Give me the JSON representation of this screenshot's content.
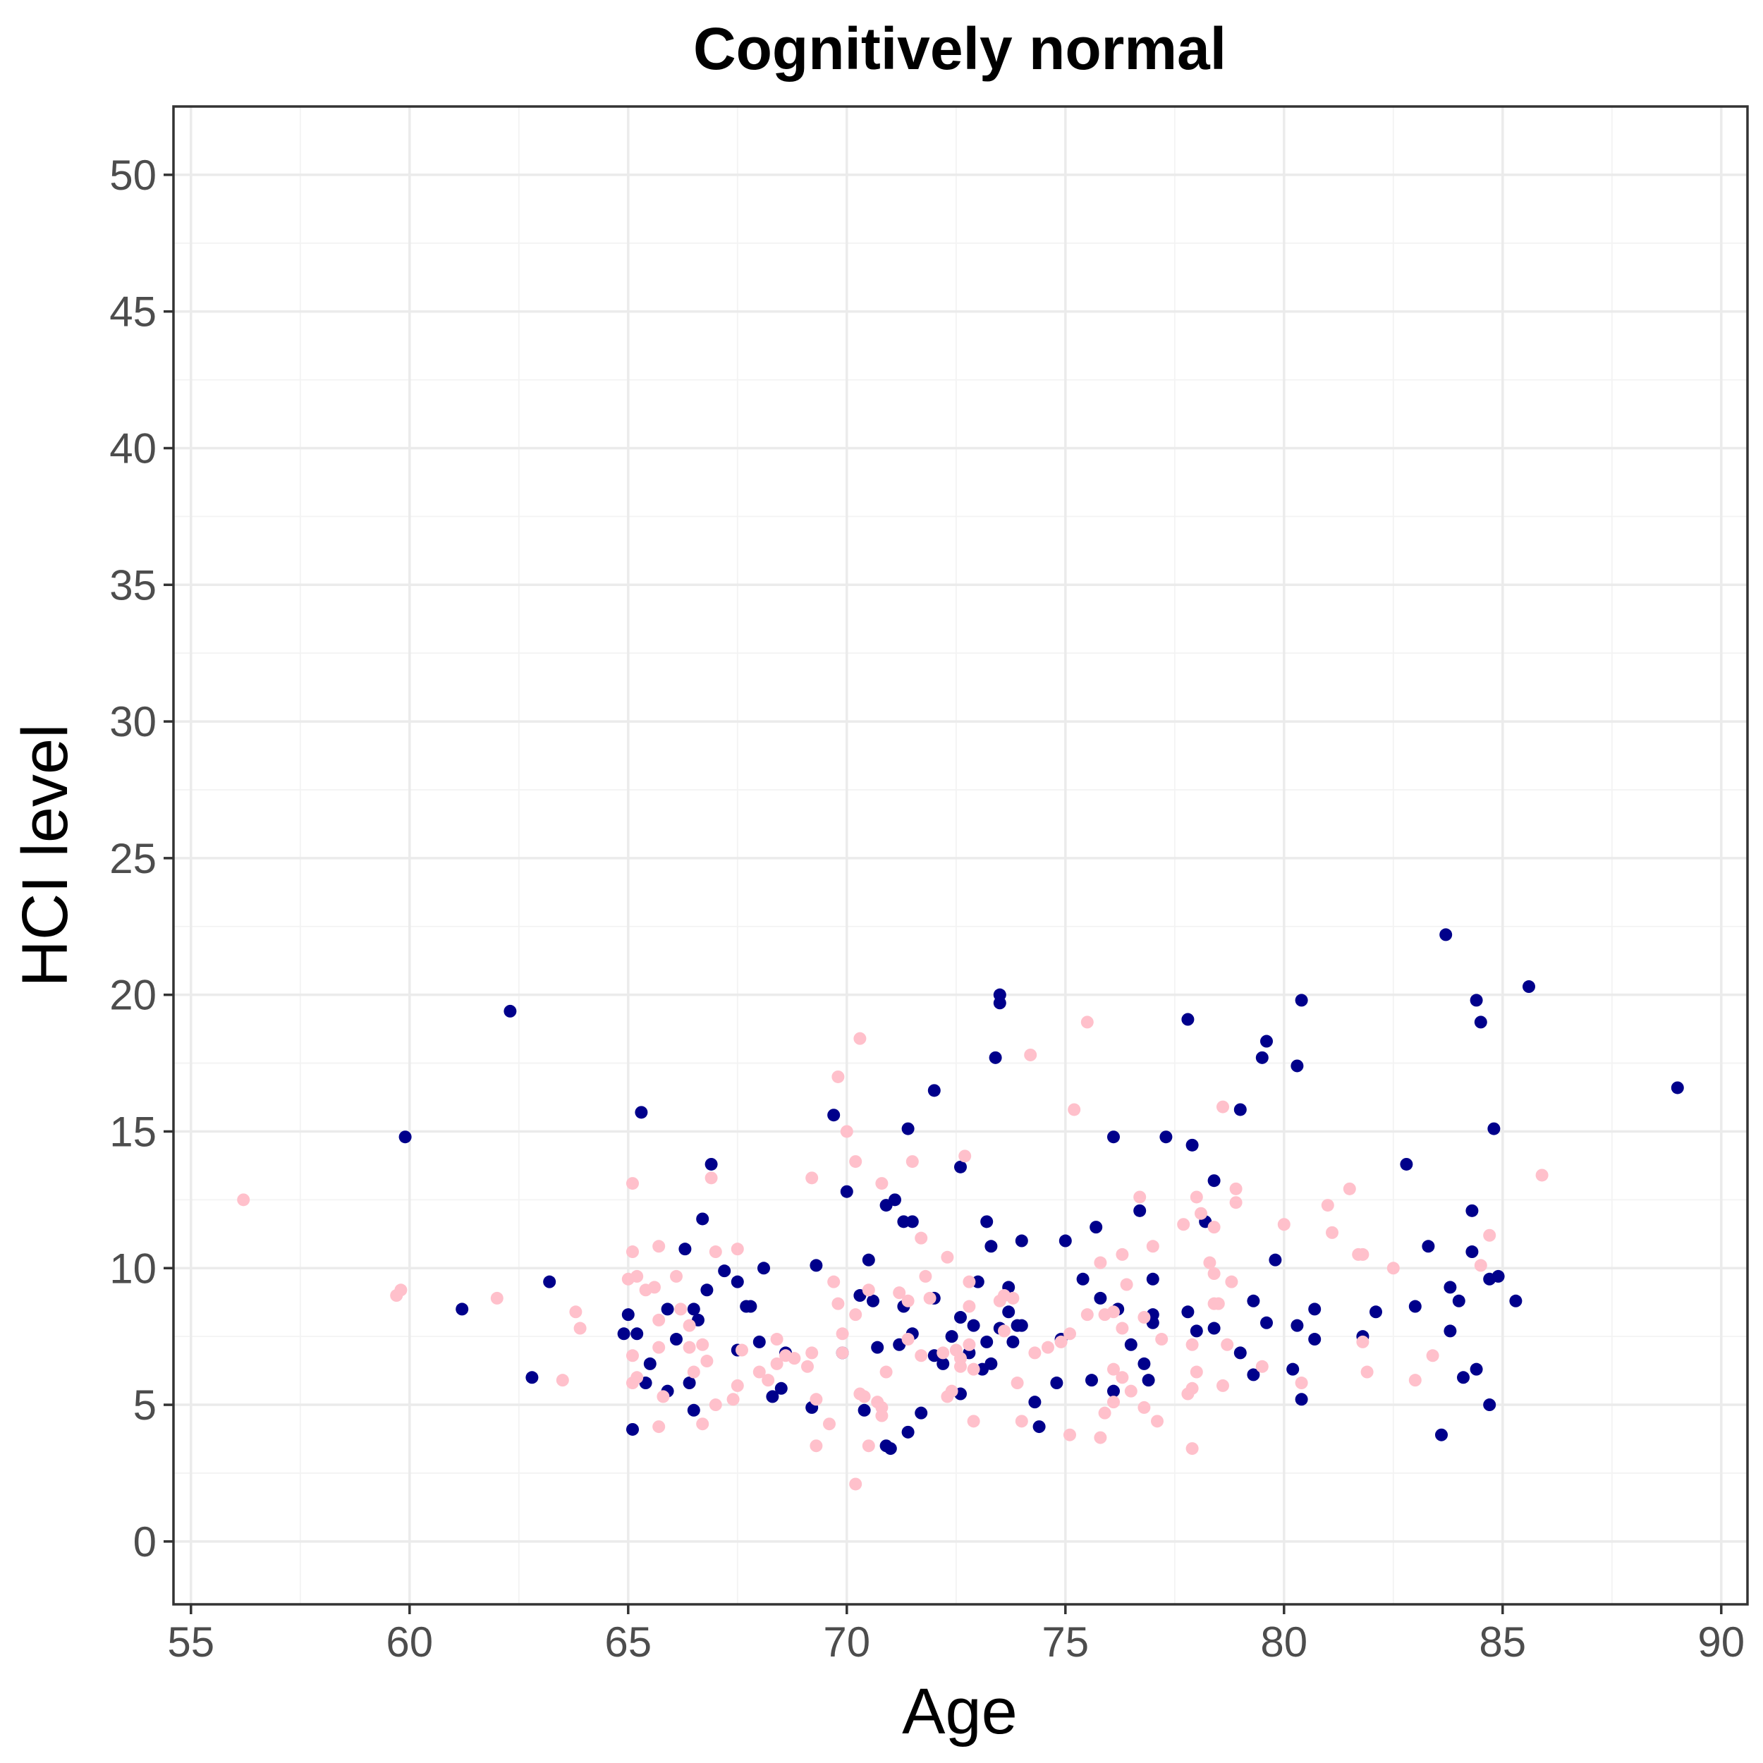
{
  "chart_data": {
    "type": "scatter",
    "title": "Cognitively normal",
    "xlabel": "Age",
    "ylabel": "HCI level",
    "xlim": [
      54.6,
      90.6
    ],
    "ylim": [
      -2.3,
      52.5
    ],
    "x_ticks": [
      55,
      60,
      65,
      70,
      75,
      80,
      85,
      90
    ],
    "y_ticks": [
      0,
      5,
      10,
      15,
      20,
      25,
      30,
      35,
      40,
      45,
      50
    ],
    "grid": true,
    "legend": "none",
    "series": [
      {
        "color": "#00008b",
        "points": [
          [
            59.9,
            14.8
          ],
          [
            61.2,
            8.5
          ],
          [
            62.3,
            19.4
          ],
          [
            62.8,
            6.0
          ],
          [
            63.2,
            9.5
          ],
          [
            64.9,
            7.6
          ],
          [
            65.0,
            8.3
          ],
          [
            65.1,
            4.1
          ],
          [
            65.2,
            7.6
          ],
          [
            65.3,
            15.7
          ],
          [
            65.4,
            5.8
          ],
          [
            65.5,
            6.5
          ],
          [
            65.9,
            8.5
          ],
          [
            65.9,
            5.5
          ],
          [
            66.1,
            7.4
          ],
          [
            66.3,
            10.7
          ],
          [
            66.4,
            5.8
          ],
          [
            66.5,
            8.5
          ],
          [
            66.5,
            4.8
          ],
          [
            66.6,
            8.1
          ],
          [
            66.7,
            11.8
          ],
          [
            66.8,
            9.2
          ],
          [
            66.9,
            13.8
          ],
          [
            67.2,
            9.9
          ],
          [
            67.5,
            9.5
          ],
          [
            67.5,
            7.0
          ],
          [
            67.7,
            8.6
          ],
          [
            67.8,
            8.6
          ],
          [
            68.0,
            7.3
          ],
          [
            68.1,
            10.0
          ],
          [
            68.3,
            5.3
          ],
          [
            68.5,
            5.6
          ],
          [
            68.6,
            6.9
          ],
          [
            69.2,
            4.9
          ],
          [
            69.3,
            10.1
          ],
          [
            69.7,
            15.6
          ],
          [
            69.9,
            6.9
          ],
          [
            70.0,
            12.8
          ],
          [
            70.3,
            9.0
          ],
          [
            70.4,
            4.8
          ],
          [
            70.5,
            10.3
          ],
          [
            70.6,
            8.8
          ],
          [
            70.7,
            7.1
          ],
          [
            70.9,
            12.3
          ],
          [
            70.9,
            3.5
          ],
          [
            71.0,
            3.4
          ],
          [
            71.1,
            12.5
          ],
          [
            71.2,
            7.2
          ],
          [
            71.3,
            11.7
          ],
          [
            71.3,
            8.6
          ],
          [
            71.4,
            4.0
          ],
          [
            71.4,
            15.1
          ],
          [
            71.5,
            7.6
          ],
          [
            71.5,
            11.7
          ],
          [
            71.7,
            4.7
          ],
          [
            72.0,
            16.5
          ],
          [
            72.0,
            8.9
          ],
          [
            72.0,
            6.8
          ],
          [
            72.2,
            6.5
          ],
          [
            72.4,
            7.5
          ],
          [
            72.6,
            13.7
          ],
          [
            72.6,
            8.2
          ],
          [
            72.6,
            5.4
          ],
          [
            72.8,
            6.9
          ],
          [
            72.9,
            7.9
          ],
          [
            73.0,
            9.5
          ],
          [
            73.1,
            6.3
          ],
          [
            73.2,
            11.7
          ],
          [
            73.2,
            7.3
          ],
          [
            73.3,
            6.5
          ],
          [
            73.3,
            10.8
          ],
          [
            73.4,
            17.7
          ],
          [
            73.5,
            20.0
          ],
          [
            73.5,
            19.7
          ],
          [
            73.5,
            7.8
          ],
          [
            73.7,
            9.3
          ],
          [
            73.7,
            8.4
          ],
          [
            73.8,
            7.3
          ],
          [
            73.9,
            7.9
          ],
          [
            74.0,
            7.9
          ],
          [
            74.0,
            11.0
          ],
          [
            74.3,
            5.1
          ],
          [
            74.4,
            4.2
          ],
          [
            74.8,
            5.8
          ],
          [
            74.9,
            7.4
          ],
          [
            75.0,
            11.0
          ],
          [
            75.4,
            9.6
          ],
          [
            75.6,
            5.9
          ],
          [
            75.7,
            11.5
          ],
          [
            75.8,
            8.9
          ],
          [
            76.1,
            14.8
          ],
          [
            76.1,
            5.5
          ],
          [
            76.2,
            8.5
          ],
          [
            76.5,
            7.2
          ],
          [
            76.7,
            12.1
          ],
          [
            76.8,
            6.5
          ],
          [
            76.9,
            5.9
          ],
          [
            77.0,
            9.6
          ],
          [
            77.0,
            8.3
          ],
          [
            77.0,
            8.0
          ],
          [
            77.3,
            14.8
          ],
          [
            77.8,
            19.1
          ],
          [
            77.8,
            8.4
          ],
          [
            77.9,
            14.5
          ],
          [
            78.0,
            7.7
          ],
          [
            78.2,
            11.7
          ],
          [
            78.4,
            13.2
          ],
          [
            78.4,
            7.8
          ],
          [
            79.0,
            15.8
          ],
          [
            79.0,
            6.9
          ],
          [
            79.3,
            8.8
          ],
          [
            79.3,
            6.1
          ],
          [
            79.5,
            17.7
          ],
          [
            79.6,
            18.3
          ],
          [
            79.6,
            8.0
          ],
          [
            79.8,
            10.3
          ],
          [
            80.2,
            6.3
          ],
          [
            80.3,
            17.4
          ],
          [
            80.3,
            7.9
          ],
          [
            80.4,
            19.8
          ],
          [
            80.4,
            5.2
          ],
          [
            80.7,
            8.5
          ],
          [
            80.7,
            7.4
          ],
          [
            81.8,
            7.5
          ],
          [
            82.1,
            8.4
          ],
          [
            82.8,
            13.8
          ],
          [
            83.0,
            8.6
          ],
          [
            83.3,
            10.8
          ],
          [
            83.6,
            3.9
          ],
          [
            83.7,
            22.2
          ],
          [
            83.8,
            9.3
          ],
          [
            83.8,
            7.7
          ],
          [
            84.0,
            8.8
          ],
          [
            84.1,
            6.0
          ],
          [
            84.3,
            10.6
          ],
          [
            84.3,
            12.1
          ],
          [
            84.4,
            19.8
          ],
          [
            84.4,
            6.3
          ],
          [
            84.5,
            19.0
          ],
          [
            84.7,
            9.6
          ],
          [
            84.7,
            5.0
          ],
          [
            84.8,
            15.1
          ],
          [
            84.9,
            9.7
          ],
          [
            85.3,
            8.8
          ],
          [
            85.6,
            20.3
          ],
          [
            89.0,
            16.6
          ]
        ]
      },
      {
        "color": "#ffc0cb",
        "points": [
          [
            56.2,
            12.5
          ],
          [
            59.7,
            9.0
          ],
          [
            59.8,
            9.2
          ],
          [
            62.0,
            8.9
          ],
          [
            63.5,
            5.9
          ],
          [
            63.8,
            8.4
          ],
          [
            63.9,
            7.8
          ],
          [
            65.0,
            9.6
          ],
          [
            65.1,
            13.1
          ],
          [
            65.1,
            10.6
          ],
          [
            65.1,
            6.8
          ],
          [
            65.1,
            5.8
          ],
          [
            65.2,
            9.7
          ],
          [
            65.2,
            6.0
          ],
          [
            65.4,
            9.2
          ],
          [
            65.6,
            9.3
          ],
          [
            65.7,
            10.8
          ],
          [
            65.7,
            8.1
          ],
          [
            65.7,
            7.1
          ],
          [
            65.7,
            4.2
          ],
          [
            65.8,
            5.3
          ],
          [
            66.1,
            9.7
          ],
          [
            66.2,
            8.5
          ],
          [
            66.4,
            7.9
          ],
          [
            66.4,
            7.1
          ],
          [
            66.5,
            6.2
          ],
          [
            66.7,
            7.2
          ],
          [
            66.7,
            4.3
          ],
          [
            66.8,
            6.6
          ],
          [
            66.9,
            13.3
          ],
          [
            67.0,
            10.6
          ],
          [
            67.0,
            5.0
          ],
          [
            67.4,
            5.2
          ],
          [
            67.5,
            10.7
          ],
          [
            67.5,
            5.7
          ],
          [
            67.6,
            7.0
          ],
          [
            68.0,
            6.2
          ],
          [
            68.2,
            5.9
          ],
          [
            68.4,
            7.4
          ],
          [
            68.4,
            6.5
          ],
          [
            68.6,
            6.8
          ],
          [
            68.8,
            6.7
          ],
          [
            69.1,
            6.4
          ],
          [
            69.2,
            13.3
          ],
          [
            69.2,
            6.9
          ],
          [
            69.3,
            5.2
          ],
          [
            69.3,
            3.5
          ],
          [
            69.6,
            4.3
          ],
          [
            69.7,
            9.5
          ],
          [
            69.8,
            17.0
          ],
          [
            69.8,
            8.7
          ],
          [
            69.9,
            7.6
          ],
          [
            69.9,
            6.9
          ],
          [
            70.0,
            15.0
          ],
          [
            70.2,
            13.9
          ],
          [
            70.2,
            8.3
          ],
          [
            70.2,
            2.1
          ],
          [
            70.3,
            18.4
          ],
          [
            70.3,
            5.4
          ],
          [
            70.4,
            5.3
          ],
          [
            70.5,
            9.2
          ],
          [
            70.5,
            3.5
          ],
          [
            70.7,
            5.1
          ],
          [
            70.8,
            13.1
          ],
          [
            70.8,
            4.9
          ],
          [
            70.8,
            4.6
          ],
          [
            70.9,
            6.2
          ],
          [
            71.2,
            9.1
          ],
          [
            71.4,
            8.8
          ],
          [
            71.4,
            7.4
          ],
          [
            71.5,
            13.9
          ],
          [
            71.7,
            11.1
          ],
          [
            71.7,
            6.8
          ],
          [
            71.8,
            9.7
          ],
          [
            71.9,
            8.9
          ],
          [
            72.2,
            6.9
          ],
          [
            72.3,
            10.4
          ],
          [
            72.3,
            5.3
          ],
          [
            72.4,
            5.5
          ],
          [
            72.5,
            7.0
          ],
          [
            72.6,
            6.7
          ],
          [
            72.6,
            6.4
          ],
          [
            72.7,
            14.1
          ],
          [
            72.8,
            9.5
          ],
          [
            72.8,
            8.6
          ],
          [
            72.8,
            7.2
          ],
          [
            72.9,
            6.3
          ],
          [
            72.9,
            4.4
          ],
          [
            73.5,
            8.8
          ],
          [
            73.6,
            7.7
          ],
          [
            73.6,
            9.0
          ],
          [
            73.8,
            8.9
          ],
          [
            73.9,
            5.8
          ],
          [
            74.0,
            4.4
          ],
          [
            74.2,
            17.8
          ],
          [
            74.3,
            6.9
          ],
          [
            74.6,
            7.1
          ],
          [
            74.9,
            7.3
          ],
          [
            75.1,
            7.6
          ],
          [
            75.1,
            3.9
          ],
          [
            75.2,
            15.8
          ],
          [
            75.5,
            19.0
          ],
          [
            75.5,
            8.3
          ],
          [
            75.8,
            10.2
          ],
          [
            75.8,
            3.8
          ],
          [
            75.9,
            8.3
          ],
          [
            75.9,
            4.7
          ],
          [
            76.1,
            8.4
          ],
          [
            76.1,
            6.3
          ],
          [
            76.1,
            5.1
          ],
          [
            76.3,
            10.5
          ],
          [
            76.3,
            7.8
          ],
          [
            76.3,
            6.0
          ],
          [
            76.4,
            9.4
          ],
          [
            76.5,
            5.5
          ],
          [
            76.7,
            12.6
          ],
          [
            76.8,
            8.2
          ],
          [
            76.8,
            4.9
          ],
          [
            77.0,
            10.8
          ],
          [
            77.1,
            4.4
          ],
          [
            77.2,
            7.4
          ],
          [
            77.7,
            11.6
          ],
          [
            77.8,
            5.4
          ],
          [
            77.9,
            7.2
          ],
          [
            77.9,
            5.6
          ],
          [
            77.9,
            3.4
          ],
          [
            78.0,
            12.6
          ],
          [
            78.0,
            6.2
          ],
          [
            78.1,
            12.0
          ],
          [
            78.3,
            10.2
          ],
          [
            78.4,
            11.5
          ],
          [
            78.4,
            9.8
          ],
          [
            78.4,
            8.7
          ],
          [
            78.5,
            8.7
          ],
          [
            78.6,
            15.9
          ],
          [
            78.6,
            5.7
          ],
          [
            78.7,
            7.2
          ],
          [
            78.8,
            9.5
          ],
          [
            78.9,
            12.9
          ],
          [
            78.9,
            12.4
          ],
          [
            79.5,
            6.4
          ],
          [
            80.0,
            11.6
          ],
          [
            80.4,
            5.8
          ],
          [
            81.0,
            12.3
          ],
          [
            81.1,
            11.3
          ],
          [
            81.5,
            12.9
          ],
          [
            81.7,
            10.5
          ],
          [
            81.8,
            10.5
          ],
          [
            81.8,
            7.3
          ],
          [
            81.9,
            6.2
          ],
          [
            82.5,
            10.0
          ],
          [
            83.0,
            5.9
          ],
          [
            83.4,
            6.8
          ],
          [
            84.5,
            10.1
          ],
          [
            84.7,
            11.2
          ],
          [
            85.9,
            13.4
          ]
        ]
      }
    ]
  }
}
